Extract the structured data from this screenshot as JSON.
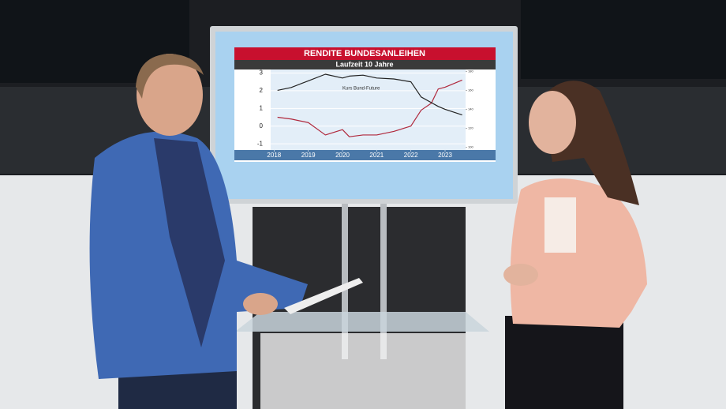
{
  "chart_data": {
    "type": "line",
    "title": "RENDITE BUNDESANLEIHEN",
    "subtitle": "Laufzeit 10 Jahre",
    "annotation": "Kurs Bund-Future",
    "x": [
      2018.1,
      2018.5,
      2019,
      2019.5,
      2020,
      2020.2,
      2020.6,
      2021,
      2021.5,
      2022,
      2022.3,
      2022.6,
      2022.8,
      2023,
      2023.5
    ],
    "xlim": [
      2017.9,
      2023.6
    ],
    "xticks": [
      2018,
      2019,
      2020,
      2021,
      2022,
      2023
    ],
    "ylim": [
      -1.35,
      3.2
    ],
    "yticks": [
      3,
      2,
      1,
      0,
      -1
    ],
    "y2lim": [
      97,
      182
    ],
    "y2ticks": [
      180,
      160,
      140,
      120,
      100
    ],
    "grid": true,
    "series": [
      {
        "name": "Rendite",
        "color": "#b0283c",
        "values": [
          0.5,
          0.4,
          0.2,
          -0.5,
          -0.2,
          -0.6,
          -0.5,
          -0.5,
          -0.3,
          0.0,
          0.9,
          1.3,
          2.1,
          2.2,
          2.6
        ]
      },
      {
        "name": "Kurs Bund-Future",
        "color": "#222222",
        "axis": "y2",
        "values": [
          160,
          163,
          170,
          177,
          173,
          175,
          176,
          173,
          172,
          169,
          153,
          147,
          143,
          140,
          134
        ]
      }
    ]
  }
}
